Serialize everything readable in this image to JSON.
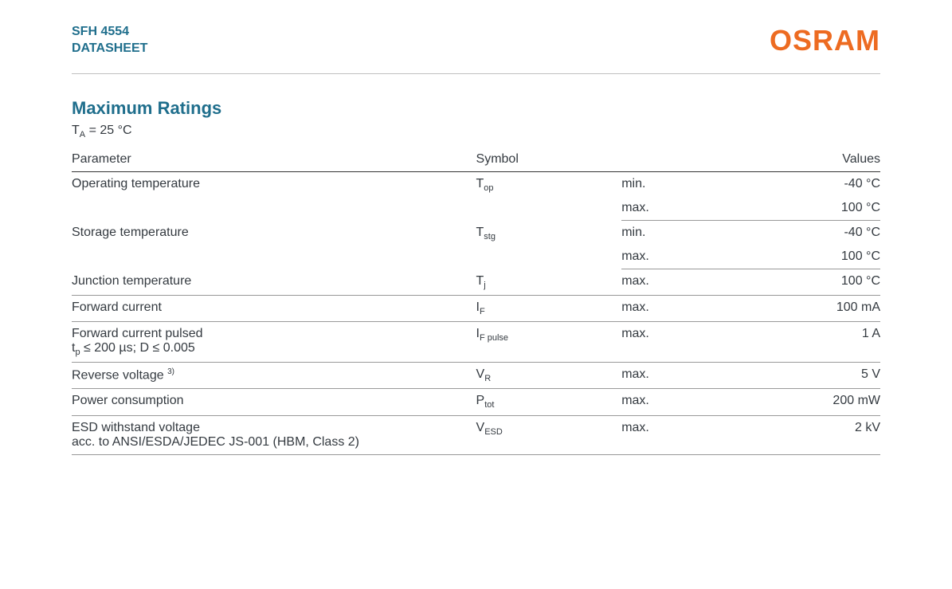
{
  "header": {
    "product_line1": "SFH 4554",
    "product_line2": "DATASHEET",
    "brand": "OSRAM"
  },
  "section": {
    "title": "Maximum Ratings",
    "condition_prefix": "T",
    "condition_sub": "A",
    "condition_rest": " = 25 °C"
  },
  "table": {
    "headers": {
      "parameter": "Parameter",
      "symbol": "Symbol",
      "values": "Values"
    },
    "rows": [
      {
        "param": "Operating temperature",
        "symbol_main": "T",
        "symbol_sub": "op",
        "entries": [
          {
            "label": "min.",
            "value": "-40 °C"
          },
          {
            "label": "max.",
            "value": "100 °C"
          }
        ]
      },
      {
        "param": "Storage temperature",
        "symbol_main": "T",
        "symbol_sub": "stg",
        "entries": [
          {
            "label": "min.",
            "value": "-40 °C"
          },
          {
            "label": "max.",
            "value": "100 °C"
          }
        ]
      },
      {
        "param": "Junction temperature",
        "symbol_main": "T",
        "symbol_sub": "j",
        "entries": [
          {
            "label": "max.",
            "value": "100 °C"
          }
        ]
      },
      {
        "param": "Forward current",
        "symbol_main": "I",
        "symbol_sub": "F",
        "entries": [
          {
            "label": "max.",
            "value": "100 mA"
          }
        ]
      },
      {
        "param": "Forward current pulsed",
        "param_line2_prefix": "t",
        "param_line2_sub": "p",
        "param_line2_rest": " ≤ 200 µs; D ≤ 0.005",
        "symbol_main": "I",
        "symbol_sub": "F pulse",
        "entries": [
          {
            "label": "max.",
            "value": "1 A"
          }
        ]
      },
      {
        "param": "Reverse voltage ",
        "param_sup": "3)",
        "symbol_main": "V",
        "symbol_sub": "R",
        "entries": [
          {
            "label": "max.",
            "value": "5 V"
          }
        ]
      },
      {
        "param": "Power consumption",
        "symbol_main": "P",
        "symbol_sub": "tot",
        "entries": [
          {
            "label": "max.",
            "value": "200 mW"
          }
        ]
      },
      {
        "param": "ESD withstand voltage",
        "param_line2_plain": "acc. to ANSI/ESDA/JEDEC JS-001 (HBM, Class 2)",
        "symbol_main": "V",
        "symbol_sub": "ESD",
        "entries": [
          {
            "label": "max.",
            "value": "2 kV"
          }
        ]
      }
    ]
  },
  "colors": {
    "heading": "#1f6e8c",
    "brand": "#ed6b21",
    "text": "#343a40",
    "rule_thick": "#333333",
    "rule_thin": "#999999"
  }
}
